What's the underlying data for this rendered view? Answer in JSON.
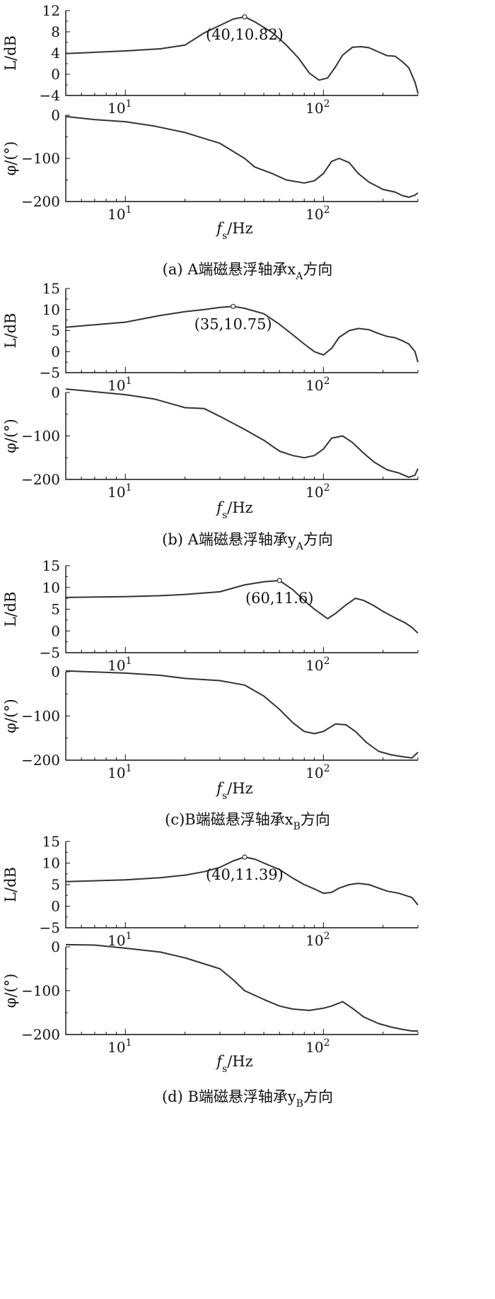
{
  "chart_data": [
    {
      "panel": "a",
      "caption": "(a) A端磁悬浮轴承x",
      "caption_sub": "A",
      "caption_suffix": "方向",
      "xlabel": "f",
      "xlabel_sub": "s",
      "xlabel_unit": "/Hz",
      "xscale": "log",
      "xlim": [
        5,
        300
      ],
      "x_ticks": [
        {
          "value": 10,
          "base": "10",
          "exp": "1"
        },
        {
          "value": 100,
          "base": "10",
          "exp": "2"
        }
      ],
      "magnitude": {
        "type": "line",
        "ylabel": "L/dB",
        "ylim": [
          -4,
          12
        ],
        "yticks": [
          -4,
          0,
          4,
          8,
          12
        ],
        "ytick_labels": [
          "−4",
          "0",
          "4",
          "8",
          "12"
        ],
        "annotation": {
          "x": 40,
          "y": 10.82,
          "text": "(40,10.82)"
        },
        "points": [
          [
            5,
            3.9
          ],
          [
            10,
            4.4
          ],
          [
            15,
            4.8
          ],
          [
            20,
            5.5
          ],
          [
            25,
            7.8
          ],
          [
            30,
            9.2
          ],
          [
            35,
            10.4
          ],
          [
            40,
            10.82
          ],
          [
            45,
            9.9
          ],
          [
            55,
            7.9
          ],
          [
            65,
            5.5
          ],
          [
            75,
            3.0
          ],
          [
            85,
            0.2
          ],
          [
            95,
            -1.1
          ],
          [
            105,
            -0.7
          ],
          [
            115,
            1.4
          ],
          [
            125,
            3.6
          ],
          [
            140,
            5.1
          ],
          [
            155,
            5.2
          ],
          [
            170,
            5.0
          ],
          [
            190,
            4.2
          ],
          [
            210,
            3.5
          ],
          [
            230,
            3.4
          ],
          [
            250,
            2.4
          ],
          [
            270,
            1.2
          ],
          [
            290,
            -1.5
          ],
          [
            300,
            -3.5
          ]
        ]
      },
      "phase": {
        "type": "line",
        "ylabel": "φ/(°)",
        "ylim": [
          -200,
          0
        ],
        "yticks": [
          -200,
          -100,
          0
        ],
        "ytick_labels": [
          "−200",
          "−100",
          "0"
        ],
        "points": [
          [
            5,
            -3
          ],
          [
            7,
            -10
          ],
          [
            10,
            -15
          ],
          [
            14,
            -25
          ],
          [
            20,
            -40
          ],
          [
            30,
            -65
          ],
          [
            40,
            -100
          ],
          [
            45,
            -120
          ],
          [
            55,
            -135
          ],
          [
            65,
            -150
          ],
          [
            80,
            -157
          ],
          [
            90,
            -152
          ],
          [
            100,
            -135
          ],
          [
            110,
            -107
          ],
          [
            120,
            -100
          ],
          [
            135,
            -110
          ],
          [
            150,
            -135
          ],
          [
            170,
            -155
          ],
          [
            200,
            -172
          ],
          [
            230,
            -178
          ],
          [
            250,
            -186
          ],
          [
            270,
            -190
          ],
          [
            290,
            -185
          ],
          [
            300,
            -180
          ]
        ]
      }
    },
    {
      "panel": "b",
      "caption": "(b) A端磁悬浮轴承y",
      "caption_sub": "A",
      "caption_suffix": "方向",
      "xlabel": "f",
      "xlabel_sub": "s",
      "xlabel_unit": "/Hz",
      "xscale": "log",
      "xlim": [
        5,
        300
      ],
      "x_ticks": [
        {
          "value": 10,
          "base": "10",
          "exp": "1"
        },
        {
          "value": 100,
          "base": "10",
          "exp": "2"
        }
      ],
      "magnitude": {
        "type": "line",
        "ylabel": "L/dB",
        "ylim": [
          -5,
          15
        ],
        "yticks": [
          -5,
          0,
          5,
          10,
          15
        ],
        "ytick_labels": [
          "−5",
          "0",
          "5",
          "10",
          "15"
        ],
        "annotation": {
          "x": 35,
          "y": 10.75,
          "text": "(35,10.75)"
        },
        "points": [
          [
            5,
            5.8
          ],
          [
            10,
            7.0
          ],
          [
            15,
            8.6
          ],
          [
            20,
            9.5
          ],
          [
            25,
            10.0
          ],
          [
            30,
            10.5
          ],
          [
            35,
            10.75
          ],
          [
            40,
            10.3
          ],
          [
            50,
            9.0
          ],
          [
            60,
            6.5
          ],
          [
            70,
            4.0
          ],
          [
            80,
            1.8
          ],
          [
            90,
            0.0
          ],
          [
            100,
            -0.8
          ],
          [
            110,
            0.8
          ],
          [
            120,
            3.4
          ],
          [
            135,
            5.0
          ],
          [
            150,
            5.5
          ],
          [
            170,
            5.2
          ],
          [
            190,
            4.3
          ],
          [
            210,
            3.6
          ],
          [
            230,
            3.3
          ],
          [
            250,
            2.6
          ],
          [
            270,
            1.8
          ],
          [
            290,
            0
          ],
          [
            300,
            -2.5
          ]
        ]
      },
      "phase": {
        "type": "line",
        "ylabel": "φ/(°)",
        "ylim": [
          -200,
          0
        ],
        "yticks": [
          -200,
          -100,
          0
        ],
        "ytick_labels": [
          "−200",
          "−100",
          "0"
        ],
        "points": [
          [
            5,
            8
          ],
          [
            10,
            -5
          ],
          [
            14,
            -15
          ],
          [
            20,
            -35
          ],
          [
            25,
            -37
          ],
          [
            30,
            -55
          ],
          [
            40,
            -85
          ],
          [
            50,
            -110
          ],
          [
            60,
            -135
          ],
          [
            70,
            -145
          ],
          [
            80,
            -150
          ],
          [
            90,
            -145
          ],
          [
            100,
            -130
          ],
          [
            110,
            -105
          ],
          [
            125,
            -100
          ],
          [
            140,
            -115
          ],
          [
            160,
            -140
          ],
          [
            180,
            -160
          ],
          [
            210,
            -178
          ],
          [
            240,
            -185
          ],
          [
            270,
            -195
          ],
          [
            290,
            -190
          ],
          [
            300,
            -175
          ]
        ]
      }
    },
    {
      "panel": "c",
      "caption": "(c)B端磁悬浮轴承x",
      "caption_sub": "B",
      "caption_suffix": "方向",
      "xlabel": "f",
      "xlabel_sub": "s",
      "xlabel_unit": "/Hz",
      "xscale": "log",
      "xlim": [
        5,
        300
      ],
      "x_ticks": [
        {
          "value": 10,
          "base": "10",
          "exp": "1"
        },
        {
          "value": 100,
          "base": "10",
          "exp": "2"
        }
      ],
      "magnitude": {
        "type": "line",
        "ylabel": "L/dB",
        "ylim": [
          -5,
          15
        ],
        "yticks": [
          -5,
          0,
          5,
          10,
          15
        ],
        "ytick_labels": [
          "−5",
          "0",
          "5",
          "10",
          "15"
        ],
        "annotation": {
          "x": 60,
          "y": 11.6,
          "text": "(60,11.6)"
        },
        "points": [
          [
            5,
            7.7
          ],
          [
            10,
            7.9
          ],
          [
            15,
            8.1
          ],
          [
            20,
            8.4
          ],
          [
            30,
            9.0
          ],
          [
            40,
            10.6
          ],
          [
            50,
            11.3
          ],
          [
            60,
            11.6
          ],
          [
            70,
            9.5
          ],
          [
            80,
            7.0
          ],
          [
            90,
            5.0
          ],
          [
            100,
            3.5
          ],
          [
            105,
            2.8
          ],
          [
            115,
            4.0
          ],
          [
            130,
            6.0
          ],
          [
            145,
            7.5
          ],
          [
            160,
            7.0
          ],
          [
            180,
            5.8
          ],
          [
            200,
            4.5
          ],
          [
            230,
            3.0
          ],
          [
            260,
            1.8
          ],
          [
            280,
            0.8
          ],
          [
            300,
            -0.5
          ]
        ]
      },
      "phase": {
        "type": "line",
        "ylabel": "φ/(°)",
        "ylim": [
          -200,
          0
        ],
        "yticks": [
          -200,
          -100,
          0
        ],
        "ytick_labels": [
          "−200",
          "−100",
          "0"
        ],
        "points": [
          [
            5,
            2
          ],
          [
            10,
            -3
          ],
          [
            15,
            -8
          ],
          [
            20,
            -15
          ],
          [
            30,
            -20
          ],
          [
            40,
            -30
          ],
          [
            50,
            -55
          ],
          [
            60,
            -85
          ],
          [
            70,
            -115
          ],
          [
            80,
            -135
          ],
          [
            90,
            -140
          ],
          [
            100,
            -135
          ],
          [
            115,
            -118
          ],
          [
            130,
            -120
          ],
          [
            145,
            -135
          ],
          [
            165,
            -160
          ],
          [
            190,
            -180
          ],
          [
            220,
            -188
          ],
          [
            250,
            -192
          ],
          [
            280,
            -195
          ],
          [
            300,
            -182
          ]
        ]
      }
    },
    {
      "panel": "d",
      "caption": "(d) B端磁悬浮轴承y",
      "caption_sub": "B",
      "caption_suffix": "方向",
      "xlabel": "f",
      "xlabel_sub": "s",
      "xlabel_unit": "/Hz",
      "xscale": "log",
      "xlim": [
        5,
        300
      ],
      "x_ticks": [
        {
          "value": 10,
          "base": "10",
          "exp": "1"
        },
        {
          "value": 100,
          "base": "10",
          "exp": "2"
        }
      ],
      "magnitude": {
        "type": "line",
        "ylabel": "L/dB",
        "ylim": [
          -5,
          15
        ],
        "yticks": [
          -5,
          0,
          5,
          10,
          15
        ],
        "ytick_labels": [
          "−5",
          "0",
          "5",
          "10",
          "15"
        ],
        "annotation": {
          "x": 40,
          "y": 11.39,
          "text": "(40,11.39)"
        },
        "points": [
          [
            5,
            5.7
          ],
          [
            10,
            6.1
          ],
          [
            15,
            6.6
          ],
          [
            20,
            7.2
          ],
          [
            25,
            8.0
          ],
          [
            30,
            9.0
          ],
          [
            35,
            10.5
          ],
          [
            40,
            11.39
          ],
          [
            45,
            10.9
          ],
          [
            50,
            10.0
          ],
          [
            60,
            8.5
          ],
          [
            70,
            6.5
          ],
          [
            80,
            5.0
          ],
          [
            90,
            4.0
          ],
          [
            100,
            3.0
          ],
          [
            110,
            3.2
          ],
          [
            120,
            4.2
          ],
          [
            135,
            5.0
          ],
          [
            150,
            5.3
          ],
          [
            170,
            5.0
          ],
          [
            190,
            4.2
          ],
          [
            210,
            3.5
          ],
          [
            240,
            3.0
          ],
          [
            260,
            2.5
          ],
          [
            280,
            2.0
          ],
          [
            300,
            0.3
          ]
        ]
      },
      "phase": {
        "type": "line",
        "ylabel": "φ/(°)",
        "ylim": [
          -200,
          0
        ],
        "yticks": [
          -200,
          -100,
          0
        ],
        "ytick_labels": [
          "−200",
          "−100",
          "0"
        ],
        "points": [
          [
            5,
            5
          ],
          [
            7,
            4
          ],
          [
            10,
            -3
          ],
          [
            15,
            -12
          ],
          [
            20,
            -25
          ],
          [
            30,
            -50
          ],
          [
            35,
            -75
          ],
          [
            40,
            -100
          ],
          [
            50,
            -120
          ],
          [
            60,
            -135
          ],
          [
            70,
            -142
          ],
          [
            85,
            -145
          ],
          [
            100,
            -140
          ],
          [
            110,
            -135
          ],
          [
            125,
            -125
          ],
          [
            140,
            -140
          ],
          [
            160,
            -160
          ],
          [
            190,
            -175
          ],
          [
            220,
            -183
          ],
          [
            250,
            -188
          ],
          [
            280,
            -192
          ],
          [
            300,
            -192
          ]
        ]
      }
    }
  ]
}
